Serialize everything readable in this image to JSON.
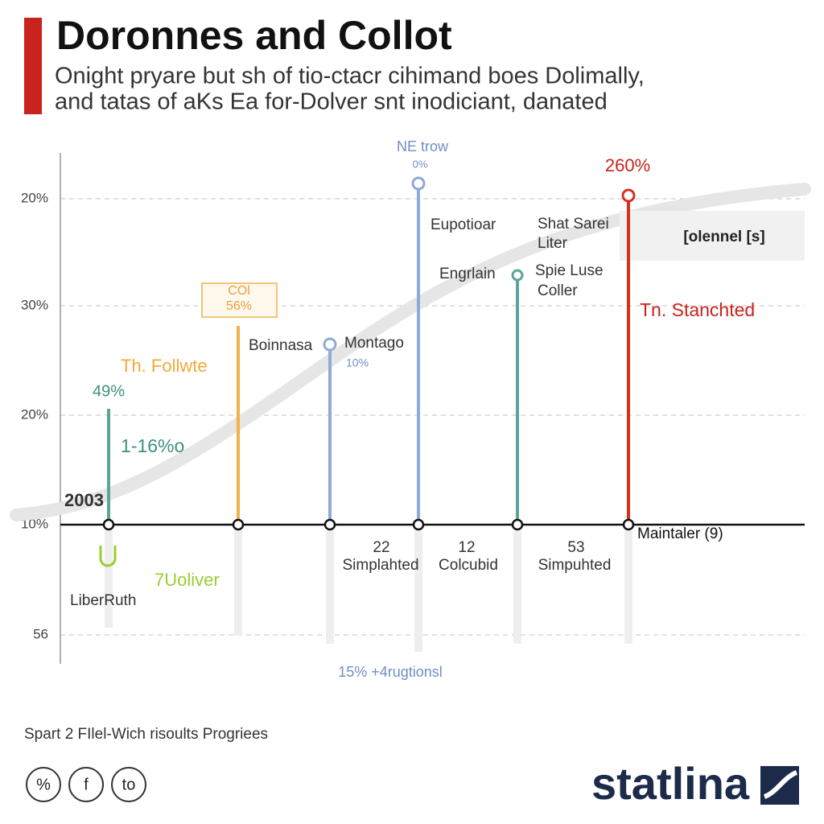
{
  "header": {
    "title": "Doronnes and Collot",
    "subtitle": [
      "Onight pryare but sh of tio-ctacr cihimand boes Dolimally,",
      "and tatas of aKs Ea for-Dolver snt inodiciant, danated"
    ]
  },
  "axis": {
    "labels": [
      "20%",
      "30%",
      "20%",
      "10%",
      "56"
    ]
  },
  "annotations": {
    "top_blue": [
      "NE trow",
      "0%"
    ],
    "top_red": "260%",
    "eupotioar": "Eupotioar",
    "shat": [
      "Shat Sarei",
      "Liter"
    ],
    "legend_box": "[olennel [s]",
    "engrlain": "Engrlain",
    "spie": [
      "Spie Luse",
      "Coller"
    ],
    "red_label": "Tn. Stanchted",
    "orange_box": [
      "COl",
      "56%"
    ],
    "boinnasa": "Boinnasa",
    "montago": [
      "Montago",
      "10%"
    ],
    "orange_label": "Th. Follwte",
    "teal_value": "49%",
    "teal_label": "1-16%o",
    "year": "2003",
    "baseline_label": "Maintaler (9)",
    "below": [
      {
        "number": "22",
        "label": "Simplahted"
      },
      {
        "number": "12",
        "label": "Colcubid"
      },
      {
        "number": "53",
        "label": "Simpuhted"
      }
    ],
    "green_label": "7Uoliver",
    "liberruth": "LiberRuth",
    "bottom_note": "15% +4rugtionsl"
  },
  "footer": {
    "source": "Spart 2 FIlel-Wich risoults Progriees",
    "icons": [
      "%",
      "f",
      "to"
    ],
    "logo": "statlina"
  }
}
